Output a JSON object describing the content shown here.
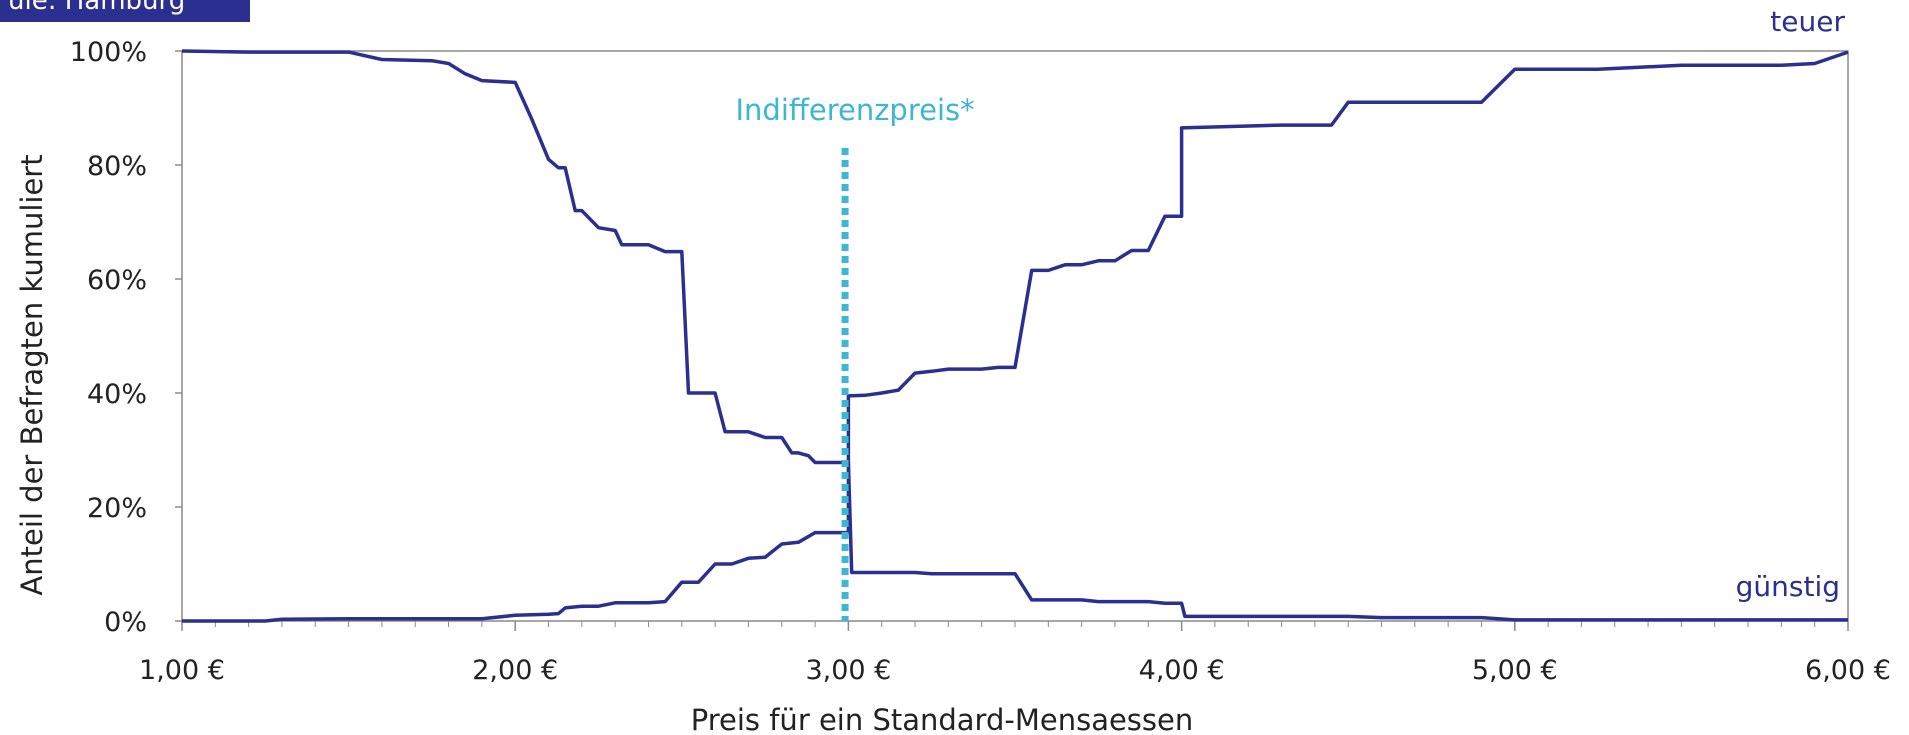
{
  "header_tag": {
    "text": "ule: Hamburg"
  },
  "chart_data": {
    "type": "line",
    "xlabel": "Preis für ein Standard-Mensaessen",
    "ylabel": "Anteil der Befragten kumuliert",
    "xlim": [
      1,
      6
    ],
    "ylim": [
      0,
      100
    ],
    "x_ticks": [
      {
        "value": 1,
        "label": "1,00 €"
      },
      {
        "value": 2,
        "label": "2,00 €"
      },
      {
        "value": 3,
        "label": "3,00 €"
      },
      {
        "value": 4,
        "label": "4,00 €"
      },
      {
        "value": 5,
        "label": "5,00 €"
      },
      {
        "value": 6,
        "label": "6,00 €"
      }
    ],
    "y_ticks": [
      {
        "value": 0,
        "label": "0%"
      },
      {
        "value": 20,
        "label": "20%"
      },
      {
        "value": 40,
        "label": "40%"
      },
      {
        "value": 60,
        "label": "60%"
      },
      {
        "value": 80,
        "label": "80%"
      },
      {
        "value": 100,
        "label": "100%"
      }
    ],
    "series": [
      {
        "name": "teuer",
        "color": "#2b2f8f",
        "points": [
          [
            1.0,
            0
          ],
          [
            1.25,
            0
          ],
          [
            1.3,
            0.3
          ],
          [
            1.5,
            0.4
          ],
          [
            1.9,
            0.4
          ],
          [
            2.0,
            1
          ],
          [
            2.1,
            1.2
          ],
          [
            2.13,
            1.3
          ],
          [
            2.15,
            2.3
          ],
          [
            2.2,
            2.6
          ],
          [
            2.25,
            2.6
          ],
          [
            2.3,
            3.2
          ],
          [
            2.4,
            3.2
          ],
          [
            2.45,
            3.4
          ],
          [
            2.5,
            6.8
          ],
          [
            2.55,
            6.8
          ],
          [
            2.6,
            10
          ],
          [
            2.65,
            10
          ],
          [
            2.7,
            11
          ],
          [
            2.75,
            11.2
          ],
          [
            2.8,
            13.5
          ],
          [
            2.85,
            13.8
          ],
          [
            2.9,
            15.5
          ],
          [
            2.95,
            15.5
          ],
          [
            3.0,
            15.5
          ],
          [
            3.0,
            39.5
          ],
          [
            3.05,
            39.6
          ],
          [
            3.1,
            40
          ],
          [
            3.15,
            40.5
          ],
          [
            3.2,
            43.5
          ],
          [
            3.25,
            43.8
          ],
          [
            3.3,
            44.2
          ],
          [
            3.4,
            44.2
          ],
          [
            3.45,
            44.5
          ],
          [
            3.5,
            44.5
          ],
          [
            3.55,
            61.5
          ],
          [
            3.6,
            61.5
          ],
          [
            3.65,
            62.5
          ],
          [
            3.7,
            62.5
          ],
          [
            3.75,
            63.2
          ],
          [
            3.8,
            63.2
          ],
          [
            3.85,
            65
          ],
          [
            3.9,
            65
          ],
          [
            3.95,
            71
          ],
          [
            4.0,
            71
          ],
          [
            4.0,
            86.5
          ],
          [
            4.3,
            87
          ],
          [
            4.45,
            87
          ],
          [
            4.5,
            91
          ],
          [
            4.9,
            91
          ],
          [
            5.0,
            96.8
          ],
          [
            5.25,
            96.8
          ],
          [
            5.5,
            97.5
          ],
          [
            5.8,
            97.5
          ],
          [
            5.9,
            97.8
          ],
          [
            6.0,
            99.8
          ]
        ]
      },
      {
        "name": "günstig",
        "color": "#2b2f8f",
        "points": [
          [
            1.0,
            100
          ],
          [
            1.2,
            99.8
          ],
          [
            1.5,
            99.8
          ],
          [
            1.6,
            98.5
          ],
          [
            1.75,
            98.3
          ],
          [
            1.8,
            97.8
          ],
          [
            1.85,
            96
          ],
          [
            1.9,
            94.8
          ],
          [
            2.0,
            94.5
          ],
          [
            2.05,
            88
          ],
          [
            2.1,
            81
          ],
          [
            2.13,
            79.5
          ],
          [
            2.15,
            79.5
          ],
          [
            2.18,
            72
          ],
          [
            2.2,
            72
          ],
          [
            2.25,
            69
          ],
          [
            2.3,
            68.5
          ],
          [
            2.32,
            66
          ],
          [
            2.4,
            66
          ],
          [
            2.45,
            64.8
          ],
          [
            2.5,
            64.8
          ],
          [
            2.52,
            40
          ],
          [
            2.6,
            40
          ],
          [
            2.63,
            33.2
          ],
          [
            2.7,
            33.2
          ],
          [
            2.75,
            32.2
          ],
          [
            2.8,
            32.2
          ],
          [
            2.83,
            29.5
          ],
          [
            2.85,
            29.5
          ],
          [
            2.88,
            29
          ],
          [
            2.9,
            27.8
          ],
          [
            3.0,
            27.8
          ],
          [
            3.01,
            8.5
          ],
          [
            3.2,
            8.5
          ],
          [
            3.25,
            8.3
          ],
          [
            3.5,
            8.3
          ],
          [
            3.55,
            3.7
          ],
          [
            3.7,
            3.7
          ],
          [
            3.75,
            3.4
          ],
          [
            3.9,
            3.4
          ],
          [
            3.95,
            3.1
          ],
          [
            4.0,
            3.1
          ],
          [
            4.01,
            0.8
          ],
          [
            4.5,
            0.8
          ],
          [
            4.6,
            0.6
          ],
          [
            4.9,
            0.6
          ],
          [
            5.0,
            0.2
          ],
          [
            6.0,
            0.2
          ]
        ]
      }
    ],
    "annotations": [
      {
        "name": "indifference-price",
        "text": "Indifferenzpreis*",
        "x": 2.99,
        "color": "#3cb6d3"
      }
    ],
    "series_label_teuer": "teuer",
    "series_label_guenstig": "günstig",
    "grid": false,
    "axis_color": "#8a8a8a"
  }
}
